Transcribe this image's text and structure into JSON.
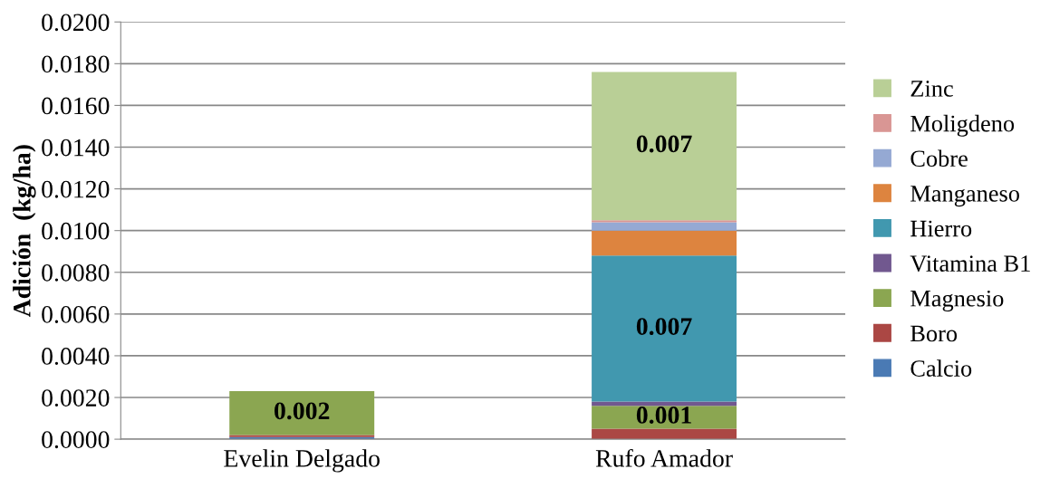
{
  "chart_data": {
    "type": "bar",
    "stacked": true,
    "ylabel": "Adición  (kg/ha)",
    "categories": [
      "Evelin Delgado",
      "Rufo Amador"
    ],
    "series": [
      {
        "name": "Calcio",
        "color": "#4a7ab4",
        "values": [
          0.0001,
          0
        ]
      },
      {
        "name": "Boro",
        "color": "#ab4744",
        "values": [
          0.0001,
          0.0005
        ],
        "value_labels": [
          null,
          null
        ]
      },
      {
        "name": "Magnesio",
        "color": "#8ba651",
        "values": [
          0.0021,
          0.0011
        ],
        "value_labels": [
          "0.002",
          "0.001"
        ]
      },
      {
        "name": "Vitamina B1",
        "color": "#71588f",
        "values": [
          0,
          0.0002
        ]
      },
      {
        "name": "Hierro",
        "color": "#4198af",
        "values": [
          0,
          0.007
        ],
        "value_labels": [
          null,
          "0.007"
        ]
      },
      {
        "name": "Manganeso",
        "color": "#dd843f",
        "values": [
          0,
          0.0012
        ]
      },
      {
        "name": "Cobre",
        "color": "#95a9d3",
        "values": [
          0,
          0.0004
        ]
      },
      {
        "name": "Moligdeno",
        "color": "#d99694",
        "values": [
          0,
          0.0001
        ]
      },
      {
        "name": "Zinc",
        "color": "#b9cf96",
        "values": [
          0,
          0.0071
        ],
        "value_labels": [
          null,
          "0.007"
        ]
      }
    ],
    "ylim": [
      0,
      0.02
    ],
    "yticks": [
      {
        "value": 0,
        "label": "0.0000"
      },
      {
        "value": 0.002,
        "label": "0.0020"
      },
      {
        "value": 0.004,
        "label": "0.0040"
      },
      {
        "value": 0.006,
        "label": "0.0060"
      },
      {
        "value": 0.008,
        "label": "0.0080"
      },
      {
        "value": 0.01,
        "label": "0.0100"
      },
      {
        "value": 0.012,
        "label": "0.0120"
      },
      {
        "value": 0.014,
        "label": "0.0140"
      },
      {
        "value": 0.016,
        "label": "0.0160"
      },
      {
        "value": 0.018,
        "label": "0.0180"
      },
      {
        "value": 0.02,
        "label": "0.0200"
      }
    ],
    "grid": "y",
    "legend": "right"
  }
}
